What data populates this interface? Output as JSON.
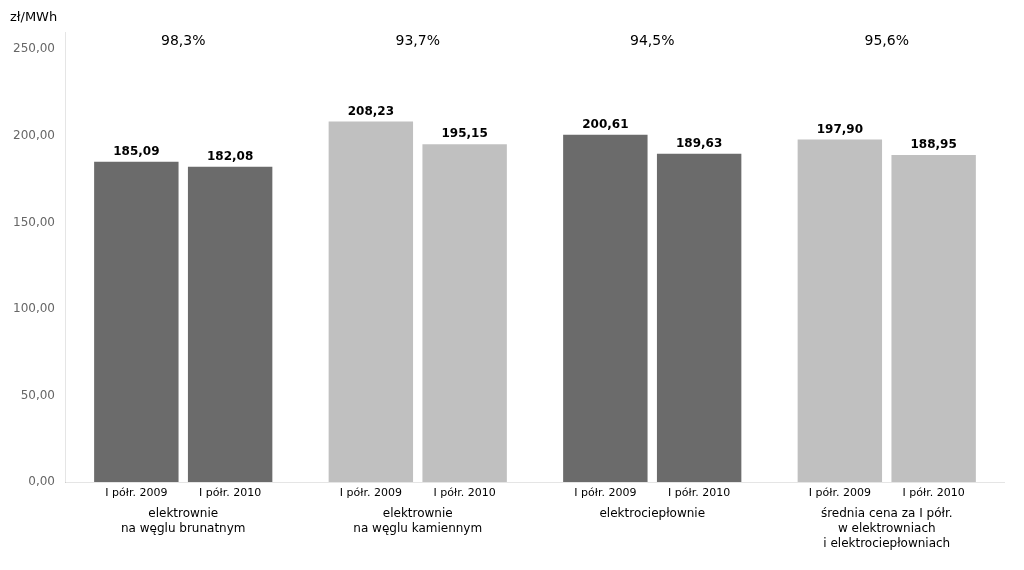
{
  "chart_data": {
    "type": "bar",
    "ylabel": "zł/MWh",
    "categories": [
      "elektrownie\nna węglu brunatnym",
      "elektrownie\nna węglu kamiennym",
      "elektrociepłownie",
      "średnia cena za I półr.\nw elektrowniach\ni elektrociepłowniach"
    ],
    "series": [
      {
        "name": "I półr. 2009",
        "values": [
          185.09,
          208.23,
          200.61,
          197.9
        ],
        "value_labels": [
          "185,09",
          "208,23",
          "200,61",
          "197,90"
        ],
        "colors": [
          "#6b6b6b",
          "#c0c0c0",
          "#6b6b6b",
          "#c0c0c0"
        ]
      },
      {
        "name": "I półr. 2010",
        "values": [
          182.08,
          195.15,
          189.63,
          188.95
        ],
        "value_labels": [
          "182,08",
          "195,15",
          "189,63",
          "188,95"
        ],
        "colors": [
          "#6b6b6b",
          "#c0c0c0",
          "#6b6b6b",
          "#c0c0c0"
        ]
      }
    ],
    "annotations": [
      "98,3%",
      "93,7%",
      "94,5%",
      "95,6%"
    ],
    "ylim": [
      0,
      260
    ],
    "yticks": [
      {
        "value": 0,
        "label": "0,00"
      },
      {
        "value": 50,
        "label": "50,00"
      },
      {
        "value": 100,
        "label": "100,00"
      },
      {
        "value": 150,
        "label": "150,00"
      },
      {
        "value": 200,
        "label": "200,00"
      },
      {
        "value": 250,
        "label": "250,00"
      }
    ],
    "data_labels": true,
    "grid": false
  }
}
